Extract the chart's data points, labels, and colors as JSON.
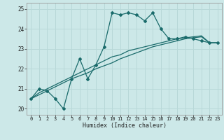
{
  "xlabel": "Humidex (Indice chaleur)",
  "ylabel": "",
  "xlim": [
    -0.5,
    23.5
  ],
  "ylim": [
    19.7,
    25.3
  ],
  "yticks": [
    20,
    21,
    22,
    23,
    24,
    25
  ],
  "xticks": [
    0,
    1,
    2,
    3,
    4,
    5,
    6,
    7,
    8,
    9,
    10,
    11,
    12,
    13,
    14,
    15,
    16,
    17,
    18,
    19,
    20,
    21,
    22,
    23
  ],
  "bg_color": "#cce8e8",
  "grid_color": "#b8d8d8",
  "line_color": "#1a6b6b",
  "line1_x": [
    0,
    1,
    2,
    3,
    4,
    5,
    6,
    7,
    8,
    9,
    10,
    11,
    12,
    13,
    14,
    15,
    16,
    17,
    18,
    19,
    20,
    21,
    22,
    23
  ],
  "line1_y": [
    20.5,
    21.0,
    20.9,
    20.5,
    20.0,
    21.5,
    22.5,
    21.5,
    22.2,
    23.1,
    24.8,
    24.7,
    24.8,
    24.7,
    24.4,
    24.8,
    24.0,
    23.5,
    23.5,
    23.6,
    23.5,
    23.4,
    23.3,
    23.3
  ],
  "line2_x": [
    0,
    1,
    2,
    3,
    4,
    5,
    6,
    7,
    8,
    9,
    10,
    11,
    12,
    13,
    14,
    15,
    16,
    17,
    18,
    19,
    20,
    21,
    22,
    23
  ],
  "line2_y": [
    20.5,
    20.8,
    21.0,
    21.2,
    21.4,
    21.6,
    21.8,
    22.0,
    22.2,
    22.4,
    22.6,
    22.7,
    22.9,
    23.0,
    23.1,
    23.2,
    23.3,
    23.4,
    23.5,
    23.55,
    23.6,
    23.65,
    23.3,
    23.3
  ],
  "line3_x": [
    0,
    1,
    2,
    3,
    4,
    5,
    6,
    7,
    8,
    9,
    10,
    11,
    12,
    13,
    14,
    15,
    16,
    17,
    18,
    19,
    20,
    21,
    22,
    23
  ],
  "line3_y": [
    20.5,
    20.7,
    20.9,
    21.1,
    21.3,
    21.5,
    21.65,
    21.8,
    22.0,
    22.15,
    22.3,
    22.5,
    22.65,
    22.8,
    22.95,
    23.1,
    23.2,
    23.3,
    23.4,
    23.5,
    23.55,
    23.6,
    23.3,
    23.3
  ]
}
